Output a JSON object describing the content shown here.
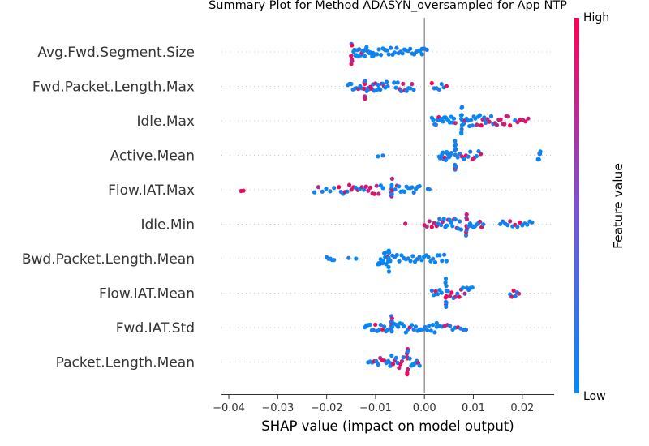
{
  "chart_data": {
    "type": "scatter",
    "title": "Summary Plot for Method ADASYN_oversampled for App NTP",
    "xlabel": "SHAP value (impact on model output)",
    "xlim": [
      -0.0415,
      0.0265
    ],
    "xticks": [
      -0.04,
      -0.03,
      -0.02,
      -0.01,
      0.0,
      0.01,
      0.02
    ],
    "xtick_labels": [
      "−0.04",
      "−0.03",
      "−0.02",
      "−0.01",
      "0.00",
      "0.01",
      "0.02"
    ],
    "colorbar": {
      "label": "Feature value",
      "high_label": "High",
      "low_label": "Low",
      "low_color": "#008bfb",
      "high_color": "#ff0052"
    },
    "zero_line_color": "#999999",
    "features": [
      {
        "name": "Avg.Fwd.Segment.Size",
        "clusters": [
          {
            "x": -0.015,
            "x1": -0.0148,
            "count": 7,
            "spread": 0.75,
            "mix": 0.85
          },
          {
            "x": -0.0145,
            "x1": -0.0105,
            "count": 22,
            "spread": 0.3,
            "mix": 0.1
          },
          {
            "x": -0.0105,
            "x1": -0.0005,
            "count": 26,
            "spread": 0.25,
            "mix": 0.0
          },
          {
            "x": -0.0005,
            "x1": 0.0005,
            "count": 3,
            "spread": 0.35,
            "mix": 0.0
          }
        ]
      },
      {
        "name": "Fwd.Packet.Length.Max",
        "clusters": [
          {
            "x": -0.0157,
            "x1": -0.0128,
            "count": 9,
            "spread": 0.3,
            "mix": 0.05
          },
          {
            "x": -0.0123,
            "x1": -0.0121,
            "count": 8,
            "spread": 0.8,
            "mix": 0.85
          },
          {
            "x": -0.0118,
            "x1": -0.0075,
            "count": 18,
            "spread": 0.3,
            "mix": 0.2
          },
          {
            "x": -0.0062,
            "x1": -0.0022,
            "count": 12,
            "spread": 0.3,
            "mix": 0.45
          },
          {
            "x": 0.0015,
            "x1": 0.0045,
            "count": 7,
            "spread": 0.2,
            "mix": 0.3
          }
        ]
      },
      {
        "name": "Idle.Max",
        "clusters": [
          {
            "x": 0.0015,
            "x1": 0.0063,
            "count": 18,
            "spread": 0.25,
            "mix": 0.05
          },
          {
            "x": 0.0075,
            "x1": 0.0077,
            "count": 10,
            "spread": 0.9,
            "mix": 0.05
          },
          {
            "x": 0.008,
            "x1": 0.0125,
            "count": 16,
            "spread": 0.35,
            "mix": 0.35
          },
          {
            "x": 0.0125,
            "x1": 0.0175,
            "count": 14,
            "spread": 0.3,
            "mix": 0.75
          },
          {
            "x": 0.0185,
            "x1": 0.0212,
            "count": 6,
            "spread": 0.15,
            "mix": 0.85
          }
        ]
      },
      {
        "name": "Active.Mean",
        "clusters": [
          {
            "x": -0.0095,
            "x1": -0.0085,
            "count": 2,
            "spread": 0.1,
            "mix": 0.0
          },
          {
            "x": 0.003,
            "x1": 0.0055,
            "count": 14,
            "spread": 0.3,
            "mix": 0.05
          },
          {
            "x": 0.0062,
            "x1": 0.0064,
            "count": 10,
            "spread": 0.9,
            "mix": 0.1
          },
          {
            "x": 0.0068,
            "x1": 0.0115,
            "count": 12,
            "spread": 0.3,
            "mix": 0.4
          },
          {
            "x": 0.0232,
            "x1": 0.0237,
            "count": 6,
            "spread": 0.3,
            "mix": 0.0
          }
        ]
      },
      {
        "name": "Flow.IAT.Max",
        "clusters": [
          {
            "x": -0.0375,
            "x1": -0.037,
            "count": 2,
            "spread": 0.1,
            "mix": 0.95
          },
          {
            "x": -0.0225,
            "x1": -0.0185,
            "count": 6,
            "spread": 0.2,
            "mix": 0.1
          },
          {
            "x": -0.0175,
            "x1": -0.0085,
            "count": 22,
            "spread": 0.3,
            "mix": 0.55
          },
          {
            "x": -0.0068,
            "x1": -0.0066,
            "count": 10,
            "spread": 0.9,
            "mix": 0.55
          },
          {
            "x": -0.006,
            "x1": -0.001,
            "count": 14,
            "spread": 0.25,
            "mix": 0.05
          },
          {
            "x": 0.0007,
            "x1": 0.001,
            "count": 2,
            "spread": 0.1,
            "mix": 0.0
          }
        ]
      },
      {
        "name": "Idle.Min",
        "clusters": [
          {
            "x": -0.004,
            "x1": -0.0038,
            "count": 1,
            "spread": 0.05,
            "mix": 0.8
          },
          {
            "x": 0.0,
            "x1": 0.0025,
            "count": 6,
            "spread": 0.2,
            "mix": 0.8
          },
          {
            "x": 0.0025,
            "x1": 0.0075,
            "count": 18,
            "spread": 0.35,
            "mix": 0.35
          },
          {
            "x": 0.0085,
            "x1": 0.0087,
            "count": 8,
            "spread": 0.85,
            "mix": 0.6
          },
          {
            "x": 0.009,
            "x1": 0.012,
            "count": 10,
            "spread": 0.2,
            "mix": 0.2
          },
          {
            "x": 0.0155,
            "x1": 0.022,
            "count": 14,
            "spread": 0.2,
            "mix": 0.35
          }
        ]
      },
      {
        "name": "Bwd.Packet.Length.Mean",
        "clusters": [
          {
            "x": -0.02,
            "x1": -0.0185,
            "count": 5,
            "spread": 0.15,
            "mix": 0.0
          },
          {
            "x": -0.0155,
            "x1": -0.014,
            "count": 2,
            "spread": 0.05,
            "mix": 0.0
          },
          {
            "x": -0.0095,
            "x1": -0.0075,
            "count": 12,
            "spread": 0.4,
            "mix": 0.15
          },
          {
            "x": -0.0074,
            "x1": -0.0072,
            "count": 10,
            "spread": 0.9,
            "mix": 0.15
          },
          {
            "x": -0.007,
            "x1": 0.0045,
            "count": 26,
            "spread": 0.25,
            "mix": 0.05
          }
        ]
      },
      {
        "name": "Flow.IAT.Mean",
        "clusters": [
          {
            "x": 0.0015,
            "x1": 0.0035,
            "count": 6,
            "spread": 0.3,
            "mix": 0.1
          },
          {
            "x": 0.0043,
            "x1": 0.0045,
            "count": 10,
            "spread": 0.9,
            "mix": 0.15
          },
          {
            "x": 0.0048,
            "x1": 0.0098,
            "count": 14,
            "spread": 0.35,
            "mix": 0.55
          },
          {
            "x": 0.0175,
            "x1": 0.0193,
            "count": 6,
            "spread": 0.25,
            "mix": 0.05
          }
        ]
      },
      {
        "name": "Fwd.IAT.Std",
        "clusters": [
          {
            "x": -0.0122,
            "x1": -0.0075,
            "count": 14,
            "spread": 0.25,
            "mix": 0.2
          },
          {
            "x": -0.0068,
            "x1": -0.0066,
            "count": 10,
            "spread": 0.9,
            "mix": 0.25
          },
          {
            "x": -0.0062,
            "x1": -0.001,
            "count": 14,
            "spread": 0.3,
            "mix": 0.1
          },
          {
            "x": -0.001,
            "x1": 0.0025,
            "count": 10,
            "spread": 0.3,
            "mix": 0.0
          },
          {
            "x": 0.0025,
            "x1": 0.0085,
            "count": 12,
            "spread": 0.2,
            "mix": 0.55
          }
        ]
      },
      {
        "name": "Packet.Length.Mean",
        "clusters": [
          {
            "x": -0.0115,
            "x1": -0.007,
            "count": 12,
            "spread": 0.25,
            "mix": 0.4
          },
          {
            "x": -0.007,
            "x1": -0.0043,
            "count": 10,
            "spread": 0.4,
            "mix": 0.35
          },
          {
            "x": -0.0036,
            "x1": -0.0034,
            "count": 10,
            "spread": 0.9,
            "mix": 0.5
          },
          {
            "x": -0.003,
            "x1": -0.001,
            "count": 8,
            "spread": 0.3,
            "mix": 0.05
          }
        ]
      }
    ]
  }
}
